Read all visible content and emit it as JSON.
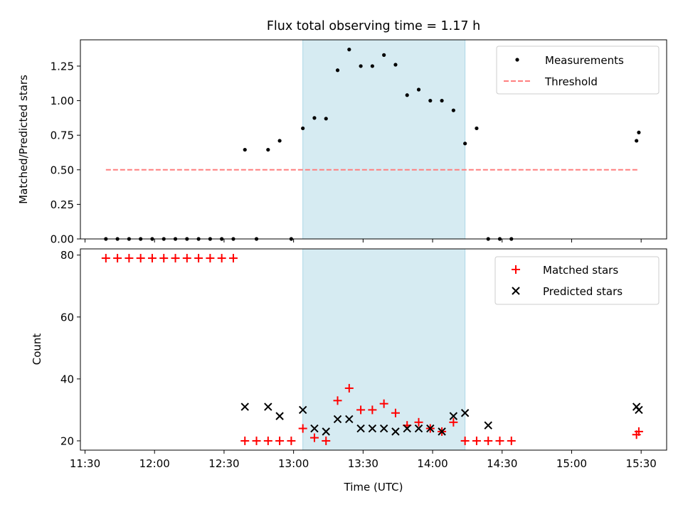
{
  "chart_data": [
    {
      "type": "scatter",
      "title": "Flux total observing time = 1.17 h",
      "xlabel": "",
      "ylabel": "Matched/Predicted stars",
      "xlim": [
        "11:28",
        "15:41"
      ],
      "ylim": [
        0,
        1.44
      ],
      "yticks": [
        0.0,
        0.25,
        0.5,
        0.75,
        1.0,
        1.25
      ],
      "ytick_labels": [
        "0.00",
        "0.25",
        "0.50",
        "0.75",
        "1.00",
        "1.25"
      ],
      "shaded_span": [
        "13:04",
        "14:14"
      ],
      "shaded_color": "#add8e6",
      "grid": false,
      "legend_position": "top-right",
      "series": [
        {
          "name": "Measurements",
          "marker": "dot",
          "color": "#000000",
          "x": [
            "11:39",
            "11:44",
            "11:49",
            "11:54",
            "11:59",
            "12:04",
            "12:09",
            "12:14",
            "12:19",
            "12:24",
            "12:29",
            "12:34",
            "12:39",
            "12:49",
            "12:54",
            "13:04",
            "13:09",
            "13:14",
            "13:19",
            "13:24",
            "13:29",
            "13:34",
            "13:39",
            "13:44",
            "13:49",
            "13:54",
            "13:59",
            "14:04",
            "14:09",
            "14:14",
            "14:19",
            "14:24",
            "14:29",
            "14:34",
            "15:28",
            "15:29"
          ],
          "y": [
            0,
            0,
            0,
            0,
            0,
            0,
            0,
            0,
            0,
            0,
            0,
            0,
            0.645,
            0.645,
            0.71,
            0.8,
            0.875,
            0.87,
            1.22,
            1.37,
            1.25,
            1.25,
            1.33,
            1.26,
            1.04,
            1.08,
            1.0,
            1.0,
            0.93,
            0.69,
            0.8,
            0,
            0,
            0,
            0.71,
            0.77
          ]
        },
        {
          "name": "Threshold",
          "style": "dashed",
          "color": "#ff7f7f",
          "x": [
            "11:39",
            "15:29"
          ],
          "y": [
            0.5,
            0.5
          ]
        }
      ],
      "extra_zero_points": {
        "x": [
          "12:44",
          "12:59"
        ],
        "y": [
          0,
          0
        ]
      }
    },
    {
      "type": "scatter",
      "title": "",
      "xlabel": "Time (UTC)",
      "ylabel": "Count",
      "xlim": [
        "11:28",
        "15:41"
      ],
      "ylim": [
        17,
        82
      ],
      "yticks": [
        20,
        40,
        60,
        80
      ],
      "ytick_labels": [
        "20",
        "40",
        "60",
        "80"
      ],
      "xticks": [
        "11:30",
        "12:00",
        "12:30",
        "13:00",
        "13:30",
        "14:00",
        "14:30",
        "15:00",
        "15:30"
      ],
      "shaded_span": [
        "13:04",
        "14:14"
      ],
      "shaded_color": "#add8e6",
      "grid": false,
      "legend_position": "top-right",
      "series": [
        {
          "name": "Matched stars",
          "marker": "plus",
          "color": "#ff0000",
          "x": [
            "11:39",
            "11:44",
            "11:49",
            "11:54",
            "11:59",
            "12:04",
            "12:09",
            "12:14",
            "12:19",
            "12:24",
            "12:29",
            "12:34",
            "12:39",
            "12:44",
            "12:49",
            "12:54",
            "12:59",
            "13:04",
            "13:09",
            "13:14",
            "13:19",
            "13:24",
            "13:29",
            "13:34",
            "13:39",
            "13:44",
            "13:49",
            "13:54",
            "13:59",
            "14:04",
            "14:09",
            "14:14",
            "14:19",
            "14:24",
            "14:29",
            "14:34",
            "15:28",
            "15:29"
          ],
          "y": [
            79,
            79,
            79,
            79,
            79,
            79,
            79,
            79,
            79,
            79,
            79,
            79,
            20,
            20,
            20,
            20,
            20,
            24,
            21,
            20,
            33,
            37,
            30,
            30,
            32,
            29,
            25,
            26,
            24,
            23,
            26,
            20,
            20,
            20,
            20,
            20,
            22,
            23
          ]
        },
        {
          "name": "Predicted stars",
          "marker": "x",
          "color": "#000000",
          "x": [
            "12:39",
            "12:49",
            "12:54",
            "13:04",
            "13:09",
            "13:14",
            "13:19",
            "13:24",
            "13:29",
            "13:34",
            "13:39",
            "13:44",
            "13:49",
            "13:54",
            "13:59",
            "14:04",
            "14:09",
            "14:14",
            "14:24",
            "15:28",
            "15:29"
          ],
          "y": [
            31,
            31,
            28,
            30,
            24,
            23,
            27,
            27,
            24,
            24,
            24,
            23,
            24,
            24,
            24,
            23,
            28,
            29,
            25,
            31,
            30
          ]
        }
      ]
    }
  ]
}
